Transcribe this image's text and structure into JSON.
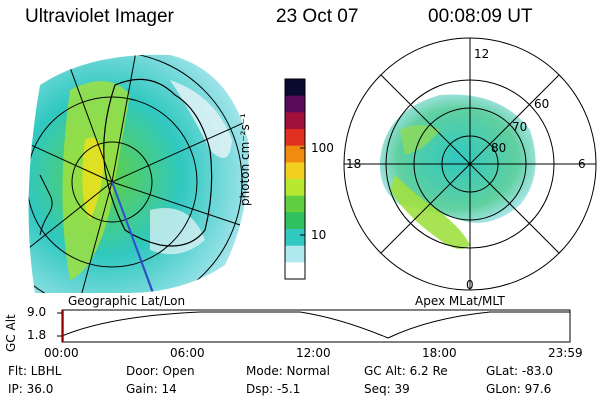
{
  "header": {
    "title": "Ultraviolet Imager",
    "date": "23 Oct 07",
    "time": "00:08:09 UT"
  },
  "left_panel": {
    "caption": "Geographic Lat/Lon"
  },
  "right_panel": {
    "caption": "Apex MLat/MLT",
    "mlt_labels": {
      "top": "12",
      "left": "18",
      "right": "6",
      "bottom": "0"
    },
    "lat_labels": [
      "60",
      "70",
      "80"
    ]
  },
  "colorbar": {
    "unit_label": "photon cm⁻²s⁻¹",
    "tick_labels": [
      "100",
      "10"
    ],
    "colors": [
      "#0a0a2e",
      "#5a0a5a",
      "#a0103a",
      "#e03020",
      "#f08a10",
      "#f2d020",
      "#b8e830",
      "#60d040",
      "#30c060",
      "#30c8c0",
      "#b0e8f0",
      "#ffffff"
    ]
  },
  "timeline": {
    "ylabel": "GC Alt",
    "y_ticks": [
      "9.0",
      "1.8"
    ],
    "x_ticks": [
      "00:00",
      "06:00",
      "12:00",
      "18:00",
      "23:59"
    ]
  },
  "info": {
    "flt": "Flt:  LBHL",
    "ip": "IP:  36.0",
    "door": "Door:  Open",
    "gain": "Gain:  14",
    "mode": "Mode:  Normal",
    "dsp": "Dsp:     -5.1",
    "gcalt": "GC Alt:  6.2 Re",
    "seq": "Seq:  39",
    "glat": "GLat:  -83.0",
    "glon": "GLon:  97.6"
  }
}
